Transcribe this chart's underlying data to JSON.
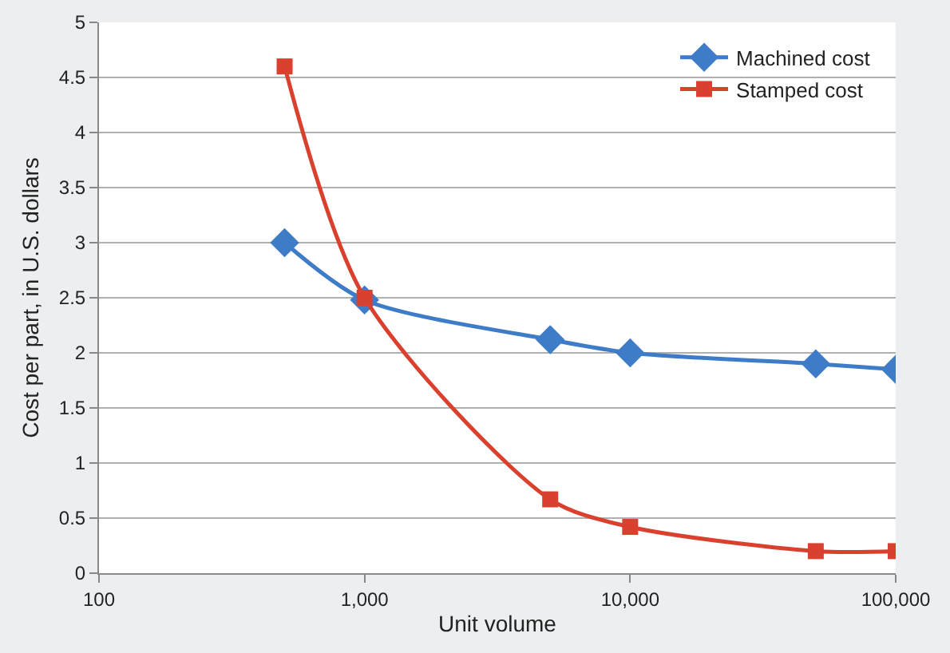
{
  "chart_data": {
    "type": "line",
    "xlabel": "Unit volume",
    "ylabel": "Cost per part, in U.S. dollars",
    "log": "x",
    "x": [
      500,
      1000,
      5000,
      10000,
      50000,
      100000
    ],
    "series": [
      {
        "name": "Machined cost",
        "color": "#3f7cc8",
        "marker": "diamond",
        "values": [
          3.0,
          2.48,
          2.12,
          2.0,
          1.9,
          1.85
        ]
      },
      {
        "name": "Stamped cost",
        "color": "#d9412e",
        "marker": "square",
        "values": [
          4.6,
          2.5,
          0.67,
          0.42,
          0.2,
          0.2
        ]
      }
    ],
    "xlim": [
      100,
      100000
    ],
    "xticks": [
      100,
      {
        "value": 1000,
        "label": "1,000"
      },
      {
        "value": 10000,
        "label": "10,000"
      },
      {
        "value": 100000,
        "label": "100,000"
      }
    ],
    "ylim": [
      0,
      5
    ],
    "yticks": [
      0,
      0.5,
      1,
      1.5,
      2,
      2.5,
      3,
      3.5,
      4,
      4.5,
      5
    ],
    "grid": "y",
    "legend": "top right"
  }
}
